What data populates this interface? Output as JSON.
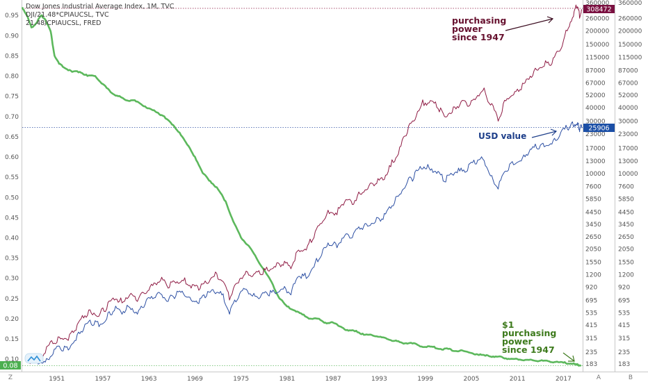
{
  "legend": {
    "line1": "Dow Jones Industrial Average Index, 1M, TVC",
    "line2": "DJI/21.48*CPIAUCSL, TVC",
    "line3": "21.48/CPIAUCSL, FRED"
  },
  "annotations": {
    "purchasing_power": [
      "purchasing",
      "power",
      "since 1947"
    ],
    "usd_value": "USD value",
    "dollar_purchasing_power": [
      "$1",
      "purchasing",
      "power",
      "since 1947"
    ]
  },
  "badges": {
    "left_current": "0.08",
    "right_red": "308472",
    "right_blue": "25906"
  },
  "corner_labels": {
    "left": "Z",
    "axis_mid": "A",
    "axis_right": "B"
  },
  "colors": {
    "green": "#5cb85c",
    "red": "#8e1a43",
    "blue": "#2c4fa3",
    "badge_red": "#7a1040",
    "badge_blue": "#1b4fa6",
    "badge_green": "#4caf50"
  },
  "chart_data": {
    "type": "line",
    "title": "Dow Jones Industrial Average Index, 1M, TVC",
    "x_ticks": [
      "1951",
      "1957",
      "1963",
      "1969",
      "1975",
      "1981",
      "1987",
      "1993",
      "1999",
      "2005",
      "2011",
      "2017"
    ],
    "y_left_ticks": [
      "0.95",
      "0.90",
      "0.85",
      "0.80",
      "0.75",
      "0.70",
      "0.65",
      "0.60",
      "0.55",
      "0.50",
      "0.45",
      "0.40",
      "0.35",
      "0.30",
      "0.25",
      "0.20",
      "0.15",
      "0.10"
    ],
    "y_right_ticks": [
      "360000",
      "260000",
      "200000",
      "150000",
      "115000",
      "87000",
      "67000",
      "52000",
      "40000",
      "30000",
      "23000",
      "17000",
      "13000",
      "10000",
      "7600",
      "5850",
      "4450",
      "3450",
      "2650",
      "2050",
      "1550",
      "1200",
      "920",
      "695",
      "535",
      "415",
      "315",
      "235",
      "183"
    ],
    "ylim_left": [
      0.08,
      0.98
    ],
    "series": [
      {
        "name": "21.48/CPIAUCSL, FRED",
        "axis": "left",
        "points": [
          [
            1947.0,
            0.97
          ],
          [
            1947.6,
            0.95
          ],
          [
            1948.2,
            0.92
          ],
          [
            1948.8,
            0.93
          ],
          [
            1949.5,
            0.95
          ],
          [
            1950.0,
            0.94
          ],
          [
            1950.7,
            0.91
          ],
          [
            1951.2,
            0.85
          ],
          [
            1951.8,
            0.83
          ],
          [
            1952.5,
            0.82
          ],
          [
            1953.5,
            0.81
          ],
          [
            1954.5,
            0.81
          ],
          [
            1955.5,
            0.8
          ],
          [
            1956.5,
            0.8
          ],
          [
            1957.5,
            0.78
          ],
          [
            1958.5,
            0.76
          ],
          [
            1959.5,
            0.75
          ],
          [
            1960.5,
            0.74
          ],
          [
            1961.5,
            0.74
          ],
          [
            1962.5,
            0.73
          ],
          [
            1963.5,
            0.72
          ],
          [
            1964.5,
            0.71
          ],
          [
            1965.5,
            0.7
          ],
          [
            1966.5,
            0.68
          ],
          [
            1967.5,
            0.66
          ],
          [
            1968.5,
            0.63
          ],
          [
            1969.5,
            0.6
          ],
          [
            1970.5,
            0.56
          ],
          [
            1971.5,
            0.54
          ],
          [
            1972.5,
            0.52
          ],
          [
            1973.5,
            0.49
          ],
          [
            1974.5,
            0.44
          ],
          [
            1975.5,
            0.4
          ],
          [
            1976.5,
            0.38
          ],
          [
            1977.5,
            0.35
          ],
          [
            1978.5,
            0.32
          ],
          [
            1979.5,
            0.29
          ],
          [
            1980.5,
            0.25
          ],
          [
            1981.5,
            0.23
          ],
          [
            1982.5,
            0.22
          ],
          [
            1983.5,
            0.21
          ],
          [
            1984.5,
            0.2
          ],
          [
            1985.5,
            0.2
          ],
          [
            1986.5,
            0.19
          ],
          [
            1987.5,
            0.19
          ],
          [
            1988.5,
            0.18
          ],
          [
            1989.5,
            0.17
          ],
          [
            1990.5,
            0.17
          ],
          [
            1991.5,
            0.16
          ],
          [
            1992.5,
            0.16
          ],
          [
            1993.5,
            0.155
          ],
          [
            1994.5,
            0.15
          ],
          [
            1995.5,
            0.145
          ],
          [
            1996.5,
            0.14
          ],
          [
            1997.5,
            0.14
          ],
          [
            1998.5,
            0.135
          ],
          [
            1999.5,
            0.13
          ],
          [
            2000.5,
            0.13
          ],
          [
            2001.5,
            0.125
          ],
          [
            2002.5,
            0.125
          ],
          [
            2003.5,
            0.12
          ],
          [
            2004.5,
            0.12
          ],
          [
            2005.5,
            0.115
          ],
          [
            2006.5,
            0.11
          ],
          [
            2007.5,
            0.11
          ],
          [
            2008.5,
            0.105
          ],
          [
            2009.5,
            0.105
          ],
          [
            2010.5,
            0.1
          ],
          [
            2011.5,
            0.1
          ],
          [
            2012.5,
            0.098
          ],
          [
            2013.5,
            0.097
          ],
          [
            2014.5,
            0.096
          ],
          [
            2015.5,
            0.095
          ],
          [
            2016.5,
            0.093
          ],
          [
            2017.5,
            0.091
          ],
          [
            2018.5,
            0.089
          ],
          [
            2019.2,
            0.086
          ],
          [
            2019.8,
            0.085
          ]
        ]
      },
      {
        "name": "DJI/21.48*CPIAUCSL, TVC",
        "axis": "right",
        "points": [
          [
            1948.0,
            183
          ],
          [
            1949.0,
            200
          ],
          [
            1950.0,
            230
          ],
          [
            1951.0,
            280
          ],
          [
            1952.0,
            310
          ],
          [
            1953.0,
            300
          ],
          [
            1954.0,
            370
          ],
          [
            1955.0,
            480
          ],
          [
            1956.0,
            530
          ],
          [
            1957.0,
            500
          ],
          [
            1958.0,
            580
          ],
          [
            1959.0,
            700
          ],
          [
            1960.0,
            660
          ],
          [
            1961.0,
            780
          ],
          [
            1962.0,
            680
          ],
          [
            1963.0,
            800
          ],
          [
            1964.0,
            950
          ],
          [
            1965.0,
            1050
          ],
          [
            1966.0,
            900
          ],
          [
            1967.0,
            1000
          ],
          [
            1968.0,
            1050
          ],
          [
            1969.0,
            900
          ],
          [
            1970.0,
            860
          ],
          [
            1971.0,
            1000
          ],
          [
            1972.0,
            1150
          ],
          [
            1973.0,
            1050
          ],
          [
            1974.0,
            700
          ],
          [
            1975.0,
            1000
          ],
          [
            1976.0,
            1200
          ],
          [
            1977.0,
            1150
          ],
          [
            1978.0,
            1200
          ],
          [
            1979.0,
            1300
          ],
          [
            1980.0,
            1400
          ],
          [
            1981.0,
            1450
          ],
          [
            1982.0,
            1350
          ],
          [
            1983.0,
            2000
          ],
          [
            1984.0,
            2000
          ],
          [
            1985.0,
            2600
          ],
          [
            1986.0,
            3500
          ],
          [
            1987.0,
            4300
          ],
          [
            1988.0,
            4200
          ],
          [
            1989.0,
            5500
          ],
          [
            1990.0,
            5200
          ],
          [
            1991.0,
            6500
          ],
          [
            1992.0,
            7200
          ],
          [
            1993.0,
            8000
          ],
          [
            1994.0,
            8700
          ],
          [
            1995.0,
            11500
          ],
          [
            1996.0,
            15000
          ],
          [
            1997.0,
            22000
          ],
          [
            1998.0,
            30000
          ],
          [
            1999.0,
            42000
          ],
          [
            2000.0,
            44000
          ],
          [
            2001.0,
            40000
          ],
          [
            2002.0,
            33000
          ],
          [
            2003.0,
            36000
          ],
          [
            2004.0,
            42000
          ],
          [
            2005.0,
            41000
          ],
          [
            2006.0,
            47000
          ],
          [
            2007.0,
            57000
          ],
          [
            2008.0,
            42000
          ],
          [
            2009.0,
            30000
          ],
          [
            2010.0,
            46000
          ],
          [
            2011.0,
            52000
          ],
          [
            2012.0,
            58000
          ],
          [
            2013.0,
            72000
          ],
          [
            2014.0,
            88000
          ],
          [
            2015.0,
            95000
          ],
          [
            2016.0,
            100000
          ],
          [
            2017.0,
            130000
          ],
          [
            2018.0,
            200000
          ],
          [
            2018.8,
            270000
          ],
          [
            2019.3,
            330000
          ],
          [
            2019.6,
            260000
          ],
          [
            2019.9,
            308472
          ]
        ]
      },
      {
        "name": "Dow Jones Industrial Average Index, 1M, TVC",
        "axis": "right",
        "points": [
          [
            1949.0,
            183
          ],
          [
            1950.0,
            190
          ],
          [
            1951.0,
            225
          ],
          [
            1952.0,
            250
          ],
          [
            1953.0,
            245
          ],
          [
            1954.0,
            300
          ],
          [
            1955.0,
            380
          ],
          [
            1956.0,
            420
          ],
          [
            1957.0,
            400
          ],
          [
            1958.0,
            470
          ],
          [
            1959.0,
            560
          ],
          [
            1960.0,
            520
          ],
          [
            1961.0,
            600
          ],
          [
            1962.0,
            520
          ],
          [
            1963.0,
            640
          ],
          [
            1964.0,
            720
          ],
          [
            1965.0,
            800
          ],
          [
            1966.0,
            680
          ],
          [
            1967.0,
            760
          ],
          [
            1968.0,
            800
          ],
          [
            1969.0,
            700
          ],
          [
            1970.0,
            650
          ],
          [
            1971.0,
            760
          ],
          [
            1972.0,
            830
          ],
          [
            1973.0,
            780
          ],
          [
            1974.0,
            520
          ],
          [
            1975.0,
            700
          ],
          [
            1976.0,
            880
          ],
          [
            1977.0,
            760
          ],
          [
            1978.0,
            740
          ],
          [
            1979.0,
            780
          ],
          [
            1980.0,
            800
          ],
          [
            1981.0,
            880
          ],
          [
            1982.0,
            780
          ],
          [
            1983.0,
            1150
          ],
          [
            1984.0,
            1100
          ],
          [
            1985.0,
            1400
          ],
          [
            1986.0,
            1800
          ],
          [
            1987.0,
            2200
          ],
          [
            1988.0,
            2100
          ],
          [
            1989.0,
            2700
          ],
          [
            1990.0,
            2600
          ],
          [
            1991.0,
            3100
          ],
          [
            1992.0,
            3300
          ],
          [
            1993.0,
            3600
          ],
          [
            1994.0,
            3800
          ],
          [
            1995.0,
            4800
          ],
          [
            1996.0,
            6200
          ],
          [
            1997.0,
            7800
          ],
          [
            1998.0,
            9000
          ],
          [
            1999.0,
            11000
          ],
          [
            2000.0,
            11200
          ],
          [
            2001.0,
            10000
          ],
          [
            2002.0,
            8400
          ],
          [
            2003.0,
            9800
          ],
          [
            2004.0,
            10500
          ],
          [
            2005.0,
            10600
          ],
          [
            2006.0,
            12200
          ],
          [
            2007.0,
            13500
          ],
          [
            2008.0,
            9500
          ],
          [
            2009.0,
            7200
          ],
          [
            2010.0,
            10500
          ],
          [
            2011.0,
            12000
          ],
          [
            2012.0,
            13000
          ],
          [
            2013.0,
            15500
          ],
          [
            2014.0,
            17000
          ],
          [
            2015.0,
            17500
          ],
          [
            2016.0,
            18500
          ],
          [
            2017.0,
            22000
          ],
          [
            2018.0,
            25500
          ],
          [
            2018.8,
            26800
          ],
          [
            2019.3,
            27500
          ],
          [
            2019.6,
            24000
          ],
          [
            2019.9,
            25906
          ]
        ]
      }
    ],
    "reference_lines": {
      "left_value": 0.08,
      "right_red": 308472,
      "right_blue": 25906
    },
    "grid": false
  }
}
